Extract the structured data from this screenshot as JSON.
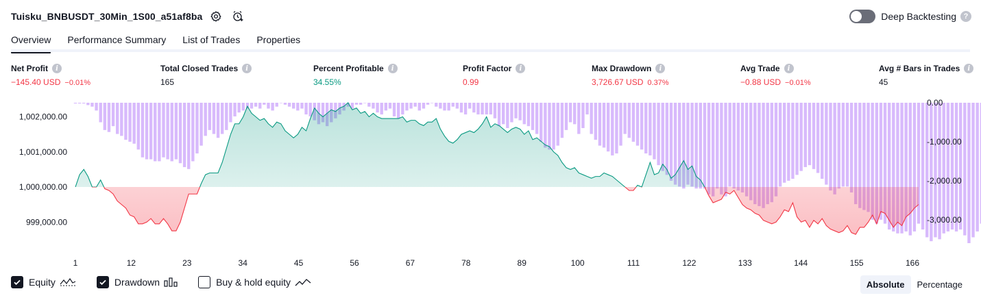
{
  "header": {
    "title": "Tuisku_BNBUSDT_30Min_1S00_a51af8ba",
    "deep_backtesting_label": "Deep Backtesting",
    "deep_backtesting_enabled": false,
    "help_glyph": "?"
  },
  "tabs": [
    {
      "label": "Overview",
      "active": true
    },
    {
      "label": "Performance Summary",
      "active": false
    },
    {
      "label": "List of Trades",
      "active": false
    },
    {
      "label": "Properties",
      "active": false
    }
  ],
  "stats": [
    {
      "label": "Net Profit",
      "value": "−145.40 USD",
      "pct": "−0.01%",
      "color": "#f23645"
    },
    {
      "label": "Total Closed Trades",
      "value": "165",
      "pct": "",
      "color": "#131722"
    },
    {
      "label": "Percent Profitable",
      "value": "34.55%",
      "pct": "",
      "color": "#089981"
    },
    {
      "label": "Profit Factor",
      "value": "0.99",
      "pct": "",
      "color": "#f23645"
    },
    {
      "label": "Max Drawdown",
      "value": "3,726.67 USD",
      "pct": "0.37%",
      "color": "#f23645"
    },
    {
      "label": "Avg Trade",
      "value": "−0.88 USD",
      "pct": "−0.01%",
      "color": "#f23645"
    },
    {
      "label": "Avg # Bars in Trades",
      "value": "45",
      "pct": "",
      "color": "#131722"
    }
  ],
  "colors": {
    "profit": "#089981",
    "loss": "#f23645",
    "drawdown_bar": "#d1aefb",
    "text": "#131722"
  },
  "chart_data": {
    "type": "area",
    "x_ticks": [
      "1",
      "12",
      "23",
      "34",
      "45",
      "56",
      "67",
      "78",
      "89",
      "100",
      "111",
      "122",
      "133",
      "144",
      "155",
      "166"
    ],
    "y_left_ticks": [
      "1,002,000.00",
      "1,001,000.00",
      "1,000,000.00",
      "999,000.00"
    ],
    "y_right_ticks": [
      "0.00",
      "-1,000.00",
      "-2,000.00",
      "-3,000.00"
    ],
    "baseline": 1000000,
    "equity_ylim": [
      998400,
      1002400
    ],
    "drawdown_ylim": [
      -3600,
      0
    ],
    "series": [
      {
        "name": "Equity",
        "values": [
          1000000,
          1000350,
          1000500,
          1000300,
          1000000,
          1000000,
          1000200,
          999950,
          999900,
          999800,
          999600,
          999500,
          999400,
          999200,
          999150,
          998950,
          998950,
          999000,
          999100,
          998950,
          998950,
          999100,
          998950,
          998750,
          998750,
          999000,
          999400,
          999800,
          999800,
          999800,
          1000100,
          1000350,
          1000400,
          1000400,
          1000400,
          1000700,
          1001100,
          1001500,
          1001800,
          1001800,
          1002000,
          1002300,
          1002100,
          1002000,
          1001900,
          1001950,
          1001800,
          1001700,
          1001850,
          1001800,
          1001600,
          1001500,
          1001400,
          1001500,
          1001700,
          1001600,
          1001950,
          1002250,
          1002100,
          1002000,
          1002100,
          1002200,
          1002150,
          1002250,
          1002300,
          1002400,
          1002200,
          1002250,
          1002100,
          1002150,
          1002000,
          1002100,
          1002000,
          1001950,
          1001950,
          1001950,
          1001950,
          1001950,
          1002000,
          1001850,
          1001900,
          1001900,
          1001800,
          1001750,
          1001850,
          1001850,
          1001950,
          1001650,
          1001450,
          1001300,
          1001250,
          1001350,
          1001500,
          1001550,
          1001600,
          1001550,
          1001650,
          1001800,
          1002000,
          1001700,
          1001800,
          1001750,
          1001650,
          1001550,
          1001650,
          1001700,
          1001650,
          1001500,
          1001600,
          1001350,
          1001400,
          1001300,
          1001200,
          1001150,
          1001000,
          1000900,
          1000700,
          1000550,
          1000500,
          1000550,
          1000400,
          1000350,
          1000300,
          1000250,
          1000300,
          1000300,
          1000400,
          1000350,
          1000300,
          1000200,
          1000100,
          1000000,
          999900,
          999900,
          1000050,
          1000000,
          1000350,
          1000700,
          1000350,
          1000400,
          1000650,
          1000500,
          1000250,
          1000350,
          1000550,
          1000750,
          1000500,
          1000600,
          1000300,
          1000200,
          1000000,
          999750,
          999550,
          999600,
          999650,
          999850,
          999800,
          999900,
          999700,
          999500,
          999400,
          999350,
          999250,
          999200,
          999050,
          999000,
          998950,
          999000,
          999150,
          999350,
          999300,
          999550,
          999150,
          999000,
          999050,
          998850,
          999050,
          998950,
          999100,
          998900,
          998800,
          998750,
          998700,
          998750,
          998900,
          998700,
          998650,
          998850,
          998850,
          999000,
          999200,
          998950,
          999300,
          999250,
          999050,
          998850,
          999000,
          998900,
          999150,
          999250,
          999400,
          999500
        ],
        "color": "#089981"
      },
      {
        "name": "Drawdown",
        "values": [
          -20,
          -20,
          -20,
          -60,
          -100,
          -200,
          -500,
          -700,
          -750,
          -600,
          -800,
          -850,
          -950,
          -1000,
          -1050,
          -1200,
          -1400,
          -1450,
          -1450,
          -1500,
          -1500,
          -1400,
          -1450,
          -1500,
          -1450,
          -1550,
          -1650,
          -1700,
          -1500,
          -1300,
          -1100,
          -850,
          -700,
          -800,
          -900,
          -800,
          -700,
          -500,
          -350,
          -250,
          -200,
          -150,
          -150,
          -100,
          -150,
          -50,
          -150,
          -200,
          -100,
          0,
          -50,
          -100,
          -150,
          -200,
          -150,
          -300,
          -350,
          -450,
          -550,
          -500,
          -600,
          -500,
          -400,
          -300,
          -200,
          -100,
          -150,
          -50,
          -50,
          0,
          -100,
          -150,
          -250,
          -300,
          -200,
          -150,
          -350,
          -400,
          -300,
          -200,
          -150,
          -100,
          -200,
          -150,
          -50,
          0,
          -100,
          -150,
          -200,
          -200,
          -100,
          -150,
          -250,
          -300,
          -150,
          -250,
          -300,
          -300,
          -300,
          -300,
          -400,
          -600,
          -550,
          -650,
          -500,
          -400,
          -450,
          -550,
          -600,
          -700,
          -800,
          -1000,
          -1150,
          -1200,
          -1200,
          -1100,
          -900,
          -700,
          -500,
          -550,
          -800,
          -650,
          -300,
          -800,
          -950,
          -1100,
          -1150,
          -1250,
          -1350,
          -1300,
          -1100,
          -800,
          -900,
          -1000,
          -1100,
          -1200,
          -1300,
          -1350,
          -1450,
          -1600,
          -1750,
          -1850,
          -2000,
          -2100,
          -2150,
          -2200,
          -2100,
          -2150,
          -2200,
          -2200,
          -2200,
          -2350,
          -2400,
          -2200,
          -2350,
          -2400,
          -2150,
          -2200,
          -2250,
          -2300,
          -2400,
          -2500,
          -2600,
          -2650,
          -2700,
          -2600,
          -2550,
          -2400,
          -2150,
          -2050,
          -2000,
          -1950,
          -1850,
          -1750,
          -1650,
          -1600,
          -1700,
          -1800,
          -1950,
          -2100,
          -2250,
          -2350,
          -2200,
          -2150,
          -2150,
          -2300,
          -2600,
          -2700,
          -2750,
          -2800,
          -3000,
          -3100,
          -3000,
          -3100,
          -3250,
          -3300,
          -3350,
          -3350,
          -3300,
          -3400,
          -3300,
          -3100,
          -3250,
          -3450,
          -3550,
          -3450,
          -3500,
          -3350,
          -3300,
          -3250,
          -3300,
          -3250,
          -3400,
          -3600,
          -3450,
          -3300,
          -3100,
          -2950,
          -3200,
          -3300,
          -3350,
          -3200,
          -3000,
          -2800
        ],
        "color": "#d1aefb"
      }
    ]
  },
  "legend": [
    {
      "label": "Equity",
      "checked": true,
      "icon": "equity-line-icon"
    },
    {
      "label": "Drawdown",
      "checked": true,
      "icon": "drawdown-bars-icon"
    },
    {
      "label": "Buy & hold equity",
      "checked": false,
      "icon": "buy-hold-line-icon"
    }
  ],
  "mode": {
    "absolute_label": "Absolute",
    "percentage_label": "Percentage",
    "active": "Absolute"
  }
}
